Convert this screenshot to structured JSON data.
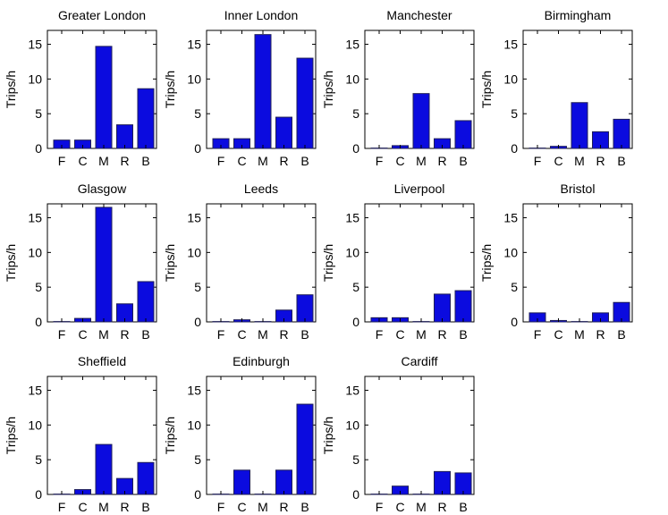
{
  "colors": {
    "bar_fill": "#0b0bdf",
    "bar_stroke": "#1f1f57",
    "axis": "#000000",
    "background": "#ffffff"
  },
  "chart_data": [
    {
      "type": "bar",
      "title": "Greater London",
      "categories": [
        "F",
        "C",
        "M",
        "R",
        "B"
      ],
      "values": [
        1.2,
        1.2,
        14.7,
        3.4,
        8.6
      ],
      "ylabel": "Trips/h",
      "xlabel": "",
      "ylim": [
        0,
        17
      ],
      "yticks": [
        "0",
        "5",
        "10",
        "15"
      ]
    },
    {
      "type": "bar",
      "title": "Inner London",
      "categories": [
        "F",
        "C",
        "M",
        "R",
        "B"
      ],
      "values": [
        1.4,
        1.4,
        16.4,
        4.5,
        13.0
      ],
      "ylabel": "Trips/h",
      "xlabel": "",
      "ylim": [
        0,
        17
      ],
      "yticks": [
        "0",
        "5",
        "10",
        "15"
      ]
    },
    {
      "type": "bar",
      "title": "Manchester",
      "categories": [
        "F",
        "C",
        "M",
        "R",
        "B"
      ],
      "values": [
        0.05,
        0.4,
        7.9,
        1.4,
        4.0
      ],
      "ylabel": "Trips/h",
      "xlabel": "",
      "ylim": [
        0,
        17
      ],
      "yticks": [
        "0",
        "5",
        "10",
        "15"
      ]
    },
    {
      "type": "bar",
      "title": "Birmingham",
      "categories": [
        "F",
        "C",
        "M",
        "R",
        "B"
      ],
      "values": [
        0.05,
        0.3,
        6.6,
        2.4,
        4.2
      ],
      "ylabel": "Trips/h",
      "xlabel": "",
      "ylim": [
        0,
        17
      ],
      "yticks": [
        "0",
        "5",
        "10",
        "15"
      ]
    },
    {
      "type": "bar",
      "title": "Glasgow",
      "categories": [
        "F",
        "C",
        "M",
        "R",
        "B"
      ],
      "values": [
        0.05,
        0.5,
        16.5,
        2.6,
        5.8
      ],
      "ylabel": "Trips/h",
      "xlabel": "",
      "ylim": [
        0,
        17
      ],
      "yticks": [
        "0",
        "5",
        "10",
        "15"
      ]
    },
    {
      "type": "bar",
      "title": "Leeds",
      "categories": [
        "F",
        "C",
        "M",
        "R",
        "B"
      ],
      "values": [
        0.05,
        0.3,
        0.05,
        1.7,
        3.9
      ],
      "ylabel": "Trips/h",
      "xlabel": "",
      "ylim": [
        0,
        17
      ],
      "yticks": [
        "0",
        "5",
        "10",
        "15"
      ]
    },
    {
      "type": "bar",
      "title": "Liverpool",
      "categories": [
        "F",
        "C",
        "M",
        "R",
        "B"
      ],
      "values": [
        0.6,
        0.6,
        0.05,
        4.0,
        4.5
      ],
      "ylabel": "Trips/h",
      "xlabel": "",
      "ylim": [
        0,
        17
      ],
      "yticks": [
        "0",
        "5",
        "10",
        "15"
      ]
    },
    {
      "type": "bar",
      "title": "Bristol",
      "categories": [
        "F",
        "C",
        "M",
        "R",
        "B"
      ],
      "values": [
        1.3,
        0.2,
        0.05,
        1.3,
        2.8
      ],
      "ylabel": "Trips/h",
      "xlabel": "",
      "ylim": [
        0,
        17
      ],
      "yticks": [
        "0",
        "5",
        "10",
        "15"
      ]
    },
    {
      "type": "bar",
      "title": "Sheffield",
      "categories": [
        "F",
        "C",
        "M",
        "R",
        "B"
      ],
      "values": [
        0.05,
        0.7,
        7.2,
        2.3,
        4.6
      ],
      "ylabel": "Trips/h",
      "xlabel": "",
      "ylim": [
        0,
        17
      ],
      "yticks": [
        "0",
        "5",
        "10",
        "15"
      ]
    },
    {
      "type": "bar",
      "title": "Edinburgh",
      "categories": [
        "F",
        "C",
        "M",
        "R",
        "B"
      ],
      "values": [
        0.05,
        3.5,
        0.05,
        3.5,
        13.0
      ],
      "ylabel": "Trips/h",
      "xlabel": "",
      "ylim": [
        0,
        17
      ],
      "yticks": [
        "0",
        "5",
        "10",
        "15"
      ]
    },
    {
      "type": "bar",
      "title": "Cardiff",
      "categories": [
        "F",
        "C",
        "M",
        "R",
        "B"
      ],
      "values": [
        0.05,
        1.2,
        0.05,
        3.3,
        3.1
      ],
      "ylabel": "Trips/h",
      "xlabel": "",
      "ylim": [
        0,
        17
      ],
      "yticks": [
        "0",
        "5",
        "10",
        "15"
      ]
    }
  ]
}
